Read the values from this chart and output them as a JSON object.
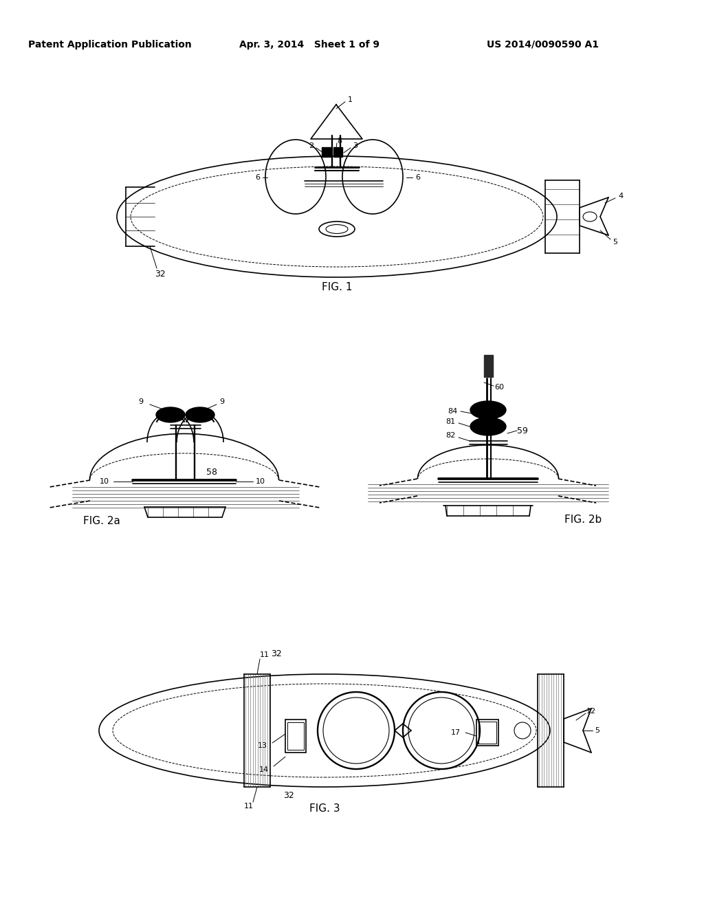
{
  "background_color": "#ffffff",
  "header_left": "Patent Application Publication",
  "header_center": "Apr. 3, 2014   Sheet 1 of 9",
  "header_right": "US 2014/0090590 A1",
  "fig1_caption": "FIG. 1",
  "fig2a_caption": "FIG. 2a",
  "fig2b_caption": "FIG. 2b",
  "fig3_caption": "FIG. 3",
  "line_color": "#000000",
  "line_width": 1.2
}
